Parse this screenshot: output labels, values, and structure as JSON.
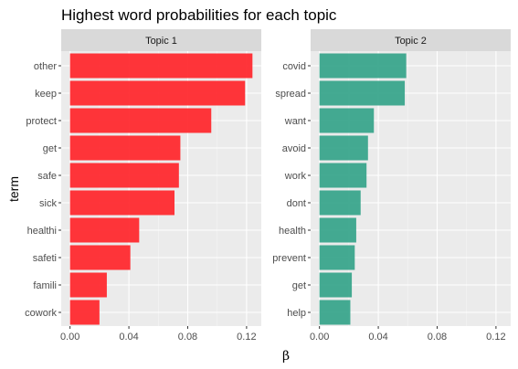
{
  "chart_data": {
    "type": "bar",
    "orientation": "horizontal",
    "title": "Highest word probabilities for each topic",
    "xlabel": "β",
    "ylabel": "term",
    "grid": true,
    "legend": "none",
    "xlim": [
      -0.006,
      0.13
    ],
    "x_ticks": [
      0.0,
      0.04,
      0.08,
      0.12
    ],
    "x_tick_labels": [
      "0.00",
      "0.04",
      "0.08",
      "0.12"
    ],
    "panels": [
      {
        "name": "Topic 1",
        "color": "#ff2a2f",
        "terms": [
          "other",
          "keep",
          "protect",
          "get",
          "safe",
          "sick",
          "healthi",
          "safeti",
          "famili",
          "cowork"
        ],
        "values": [
          0.124,
          0.119,
          0.096,
          0.075,
          0.074,
          0.071,
          0.047,
          0.041,
          0.025,
          0.02
        ]
      },
      {
        "name": "Topic 2",
        "color": "#3aa58c",
        "terms": [
          "covid",
          "spread",
          "want",
          "avoid",
          "work",
          "dont",
          "health",
          "prevent",
          "get",
          "help"
        ],
        "values": [
          0.059,
          0.058,
          0.037,
          0.033,
          0.032,
          0.028,
          0.025,
          0.024,
          0.022,
          0.021
        ]
      }
    ]
  }
}
